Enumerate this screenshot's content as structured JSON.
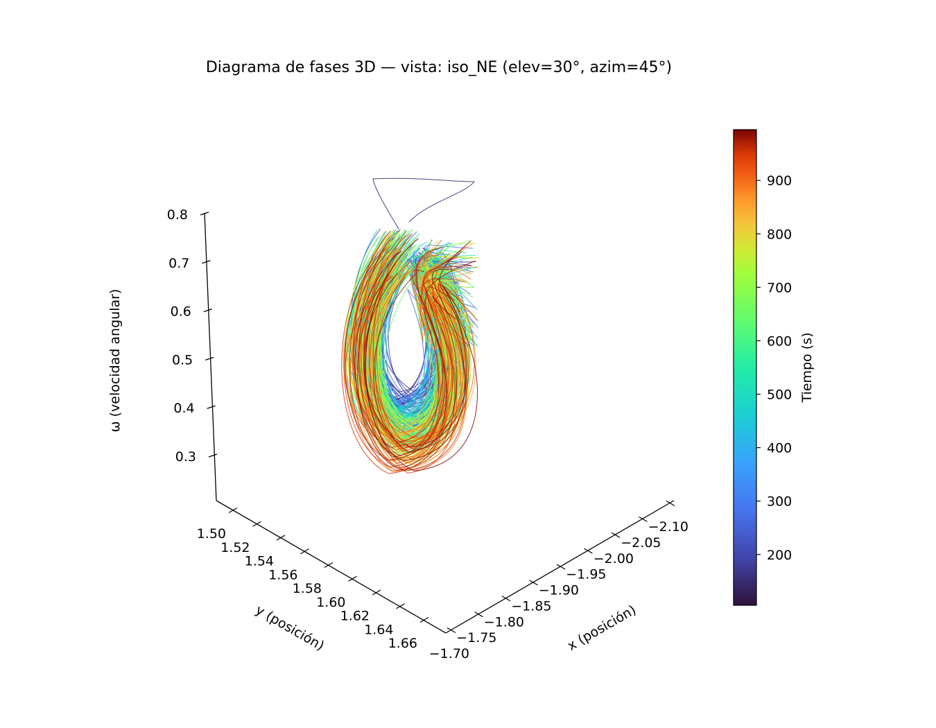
{
  "chart_data": {
    "type": "line",
    "projection": "3d",
    "title": "Diagrama de fases 3D — vista: iso_NE (elev=30°, azim=45°)",
    "view": {
      "elev": 30,
      "azim": 45
    },
    "axes": {
      "x": {
        "label": "x (posición)",
        "ticks": [
          "−1.70",
          "−1.75",
          "−1.80",
          "−1.85",
          "−1.90",
          "−1.95",
          "−2.00",
          "−2.05",
          "−2.10"
        ]
      },
      "y": {
        "label": "y (posición)",
        "ticks": [
          "1.50",
          "1.52",
          "1.54",
          "1.56",
          "1.58",
          "1.60",
          "1.62",
          "1.64",
          "1.66"
        ]
      },
      "z": {
        "label": "ω (velocidad angular)",
        "ticks": [
          "0.3",
          "0.4",
          "0.5",
          "0.6",
          "0.7",
          "0.8"
        ]
      }
    },
    "colorbar": {
      "label": "Tiempo (s)",
      "min": 105,
      "max": 995,
      "ticks": [
        "200",
        "300",
        "400",
        "500",
        "600",
        "700",
        "800",
        "900"
      ],
      "colormap": "turbo"
    },
    "series": [
      {
        "t_start": 105,
        "t_end": 995,
        "trajectory": "chaotic-attractor",
        "color_by": "time"
      }
    ]
  }
}
